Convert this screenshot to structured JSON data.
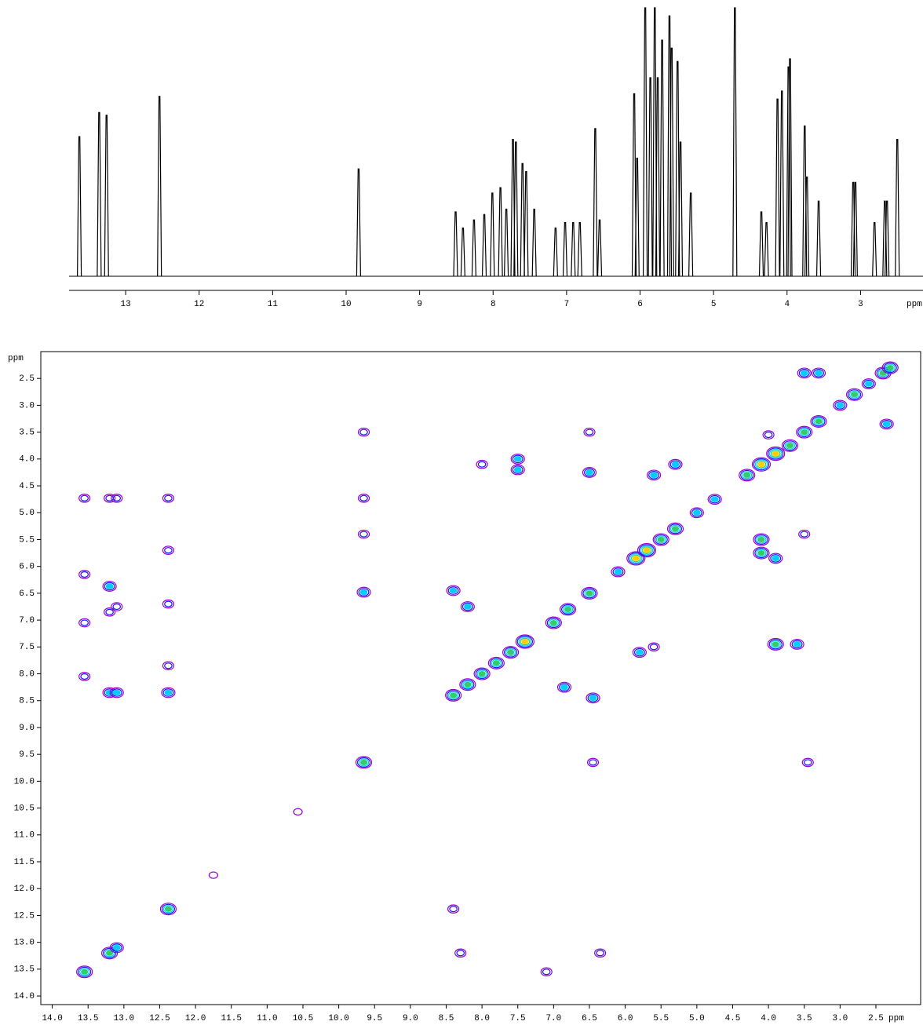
{
  "chart_data": [
    {
      "type": "spectrum",
      "color": "#000000",
      "xlabel": "ppm",
      "xlim": [
        13.77,
        2.15
      ],
      "ylim": [
        0,
        100
      ],
      "xticks": [
        13,
        12,
        11,
        10,
        9,
        8,
        7,
        6,
        5,
        4,
        3
      ],
      "x": [
        13.63,
        13.36,
        13.26,
        12.54,
        9.83,
        8.51,
        8.41,
        8.26,
        8.12,
        8.01,
        7.9,
        7.82,
        7.73,
        7.69,
        7.6,
        7.55,
        7.44,
        7.15,
        7.02,
        6.91,
        6.82,
        6.61,
        6.55,
        6.08,
        6.04,
        5.93,
        5.86,
        5.8,
        5.76,
        5.7,
        5.6,
        5.57,
        5.49,
        5.45,
        5.31,
        4.71,
        4.35,
        4.28,
        4.13,
        4.07,
        3.98,
        3.96,
        3.76,
        3.73,
        3.57,
        3.1,
        3.07,
        2.81,
        2.67,
        2.64,
        2.5
      ],
      "values": [
        52,
        61,
        60,
        67,
        40,
        24,
        18,
        21,
        23,
        31,
        33,
        25,
        51,
        50,
        42,
        39,
        25,
        18,
        20,
        20,
        20,
        55,
        21,
        68,
        44,
        100,
        74,
        100,
        74,
        88,
        97,
        85,
        80,
        50,
        31,
        100,
        24,
        20,
        66,
        69,
        78,
        81,
        56,
        37,
        28,
        35,
        35,
        20,
        28,
        28,
        51
      ]
    },
    {
      "type": "contour",
      "xlabel": "ppm",
      "ylabel": "ppm",
      "level_colors": [
        "#9900cc",
        "#1a1aff",
        "#00ccff",
        "#33cc66",
        "#ffcc00",
        "#ff3300"
      ],
      "xlim": [
        14.16,
        1.875
      ],
      "ylim": [
        2.0,
        14.16
      ],
      "xticks": [
        {
          "value": 14,
          "label": "14.0"
        },
        13.5,
        {
          "value": 13,
          "label": "13.0"
        },
        12.5,
        {
          "value": 12,
          "label": "12.0"
        },
        11.5,
        {
          "value": 11,
          "label": "11.0"
        },
        10.5,
        {
          "value": 10,
          "label": "10.0"
        },
        9.5,
        {
          "value": 9,
          "label": "9.0"
        },
        8.5,
        {
          "value": 8,
          "label": "8.0"
        },
        7.5,
        {
          "value": 7,
          "label": "7.0"
        },
        6.5,
        {
          "value": 6,
          "label": "6.0"
        },
        5.5,
        {
          "value": 5,
          "label": "5.0"
        },
        4.5,
        {
          "value": 4,
          "label": "4.0"
        },
        3.5,
        {
          "value": 3,
          "label": "3.0"
        },
        2.5
      ],
      "yticks": [
        2.5,
        {
          "value": 3,
          "label": "3.0"
        },
        3.5,
        {
          "value": 4,
          "label": "4.0"
        },
        4.5,
        {
          "value": 5,
          "label": "5.0"
        },
        5.5,
        {
          "value": 6,
          "label": "6.0"
        },
        6.5,
        {
          "value": 7,
          "label": "7.0"
        },
        7.5,
        {
          "value": 8,
          "label": "8.0"
        },
        8.5,
        {
          "value": 9,
          "label": "9.0"
        },
        9.5,
        {
          "value": 10,
          "label": "10.0"
        },
        10.5,
        {
          "value": 11,
          "label": "11.0"
        },
        11.5,
        {
          "value": 12,
          "label": "12.0"
        },
        12.5,
        {
          "value": 13,
          "label": "13.0"
        },
        13.5,
        {
          "value": 14,
          "label": "14.0"
        }
      ],
      "x": [
        13.55,
        13.2,
        13.1,
        12.38,
        9.65,
        11.75,
        10.57,
        8.4,
        8.2,
        8.0,
        7.8,
        7.6,
        7.4,
        7.0,
        6.8,
        6.5,
        6.1,
        5.85,
        5.7,
        5.5,
        5.3,
        5.0,
        4.75,
        4.3,
        4.1,
        3.9,
        3.7,
        3.5,
        3.3,
        3.0,
        2.8,
        2.6,
        2.4,
        2.3,
        13.55,
        13.55,
        13.55,
        13.55,
        13.2,
        13.1,
        13.2,
        13.2,
        13.1,
        13.2,
        13.1,
        12.38,
        12.38,
        12.38,
        12.38,
        12.38,
        9.65,
        9.65,
        9.65,
        9.65,
        8.4,
        8.3,
        6.35,
        7.1,
        6.45,
        3.45,
        8.4,
        8.2,
        6.85,
        6.45,
        7.5,
        7.5,
        8.0,
        6.5,
        5.6,
        5.3,
        4.1,
        4.1,
        3.5,
        3.9,
        3.6,
        5.6,
        5.8,
        3.5,
        3.3,
        2.35,
        3.9,
        4.0,
        6.5
      ],
      "y": [
        13.55,
        13.2,
        13.1,
        12.38,
        9.65,
        11.75,
        10.57,
        8.4,
        8.2,
        8.0,
        7.8,
        7.6,
        7.4,
        7.05,
        6.8,
        6.5,
        6.1,
        5.85,
        5.7,
        5.5,
        5.3,
        5.0,
        4.75,
        4.3,
        4.1,
        3.9,
        3.75,
        3.5,
        3.3,
        3.0,
        2.8,
        2.6,
        2.4,
        2.3,
        4.73,
        6.15,
        7.05,
        8.05,
        4.73,
        4.73,
        6.37,
        6.85,
        6.75,
        8.35,
        8.35,
        4.73,
        5.7,
        6.7,
        7.85,
        8.35,
        3.5,
        4.73,
        5.4,
        6.48,
        12.38,
        13.2,
        13.2,
        13.55,
        9.65,
        9.65,
        6.45,
        6.75,
        8.25,
        8.45,
        4.2,
        4.0,
        4.1,
        4.25,
        4.3,
        4.1,
        5.5,
        5.75,
        5.4,
        7.45,
        7.45,
        7.5,
        7.6,
        2.4,
        2.4,
        3.35,
        5.85,
        3.55,
        3.5
      ],
      "values": [
        4,
        4,
        3,
        4,
        4,
        1,
        1,
        4,
        4,
        4,
        4,
        4,
        5,
        4,
        4,
        4,
        3,
        5,
        5,
        4,
        4,
        3,
        3,
        4,
        5,
        5,
        4,
        4,
        4,
        3,
        4,
        3,
        4,
        4,
        2,
        2,
        2,
        2,
        2,
        2,
        3,
        2,
        2,
        3,
        3,
        2,
        2,
        2,
        2,
        3,
        2,
        2,
        2,
        3,
        2,
        2,
        2,
        2,
        2,
        2,
        3,
        3,
        3,
        3,
        3,
        3,
        2,
        3,
        3,
        3,
        4,
        4,
        2,
        4,
        3,
        2,
        3,
        3,
        3,
        3,
        3,
        2,
        2
      ]
    }
  ]
}
